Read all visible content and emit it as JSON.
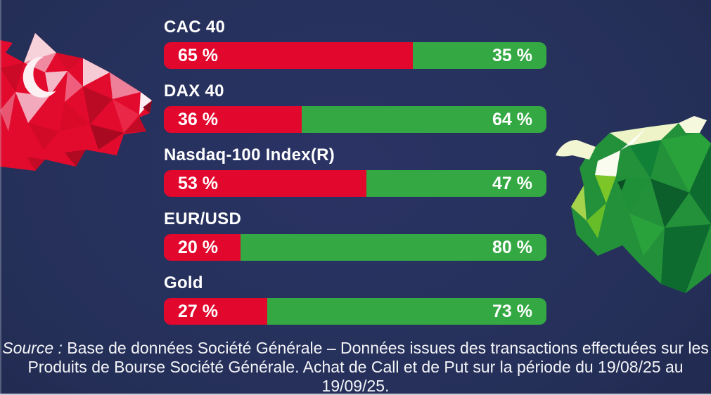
{
  "chart_data": {
    "type": "bar",
    "variant": "horizontal-stacked-100pct",
    "title": "",
    "categories": [
      "CAC 40",
      "DAX 40",
      "Nasdaq-100 Index(R)",
      "EUR/USD",
      "Gold"
    ],
    "series": [
      {
        "name": "put-red",
        "color": "#e2072c",
        "values": [
          65,
          36,
          53,
          20,
          27
        ],
        "labels": [
          "65 %",
          "36 %",
          "53 %",
          "20 %",
          "27 %"
        ]
      },
      {
        "name": "call-green",
        "color": "#34a843",
        "values": [
          35,
          64,
          47,
          80,
          73
        ],
        "labels": [
          "35 %",
          "64 %",
          "47 %",
          "80 %",
          "73 %"
        ]
      }
    ],
    "xlim": [
      0,
      100
    ],
    "value_suffix": " %",
    "grid": false,
    "legend": false
  },
  "footer": {
    "source_label": "Source :",
    "line1": " Base de données Société Générale – Données issues des transactions effectuées sur les",
    "line2": "Produits de Bourse Société Générale. Achat de Call et de Put sur la période du 19/08/25 au 19/09/25."
  },
  "colors": {
    "background_center": "#2a3364",
    "background_edge": "#141832",
    "put_red": "#e2072c",
    "call_green": "#34a843",
    "text": "#ffffff"
  },
  "graphics": {
    "left": "low-poly red bear head",
    "right": "low-poly green bull head"
  }
}
